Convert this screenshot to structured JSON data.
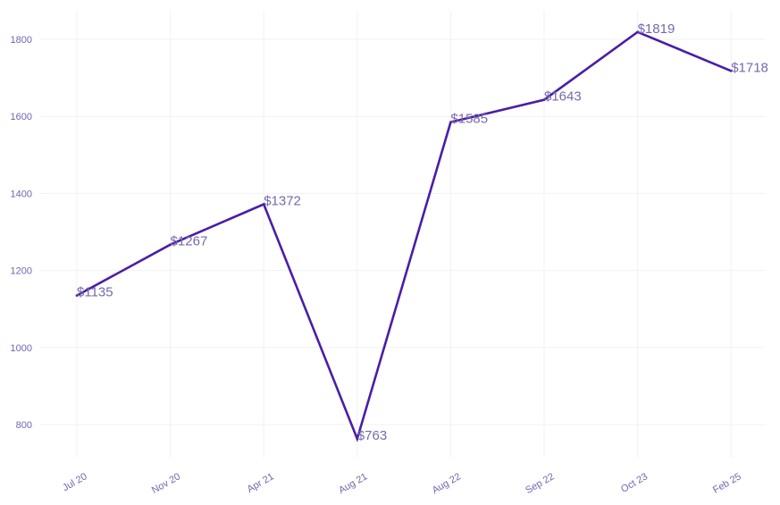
{
  "chart_data": {
    "type": "line",
    "title": "",
    "xlabel": "",
    "ylabel": "",
    "categories": [
      "Jul 20",
      "Nov 20",
      "Apr 21",
      "Aug 21",
      "Aug 22",
      "Sep 22",
      "Oct 23",
      "Feb 25"
    ],
    "series": [
      {
        "values": [
          1135,
          1267,
          1372,
          763,
          1585,
          1643,
          1819,
          1718
        ],
        "labels": [
          "$1135",
          "$1267",
          "$1372",
          "$763",
          "$1585",
          "$1643",
          "$1819",
          "$1718"
        ]
      }
    ],
    "yticks": [
      800,
      1000,
      1200,
      1400,
      1600,
      1800
    ],
    "ylim": [
      710,
      1880
    ],
    "grid": true,
    "legend": "none",
    "colors": {
      "line": "#4a1ea6",
      "tick_text": "#6f66b0",
      "data_label": "#7669ae",
      "grid": "#f1f1f6"
    }
  }
}
